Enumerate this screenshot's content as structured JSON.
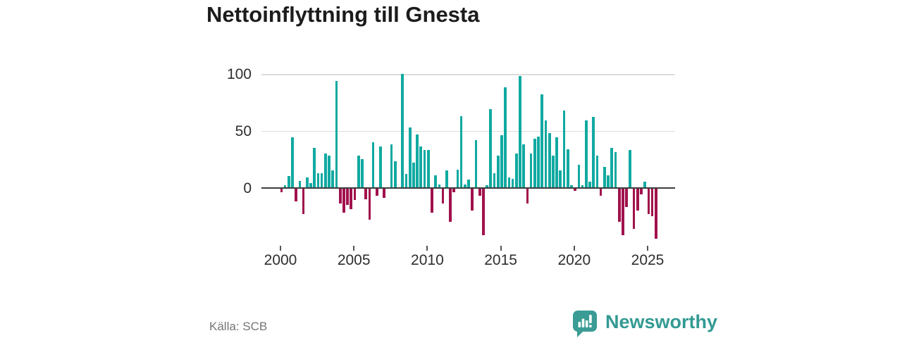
{
  "title": "Nettoinflyttning till Gnesta",
  "source": "Källa: SCB",
  "branding": {
    "name": "Newsworthy",
    "color": "#339a93"
  },
  "chart_data": {
    "type": "bar",
    "title": "Nettoinflyttning till Gnesta",
    "frequency": "quarterly",
    "start_period": "2000 Q1",
    "end_period": "2025 Q3",
    "values": [
      -4,
      2,
      10,
      44,
      -12,
      6,
      -23,
      9,
      4,
      35,
      13,
      13,
      30,
      28,
      15,
      94,
      -14,
      -22,
      -15,
      -19,
      -11,
      28,
      25,
      -10,
      -28,
      40,
      -7,
      36,
      -9,
      0,
      38,
      23,
      0,
      100,
      12,
      53,
      22,
      47,
      36,
      33,
      33,
      -22,
      11,
      3,
      -14,
      15,
      -30,
      -4,
      16,
      63,
      3,
      7,
      -20,
      42,
      -7,
      -42,
      2,
      69,
      13,
      28,
      46,
      88,
      9,
      8,
      30,
      98,
      38,
      -14,
      30,
      43,
      45,
      82,
      59,
      48,
      28,
      44,
      15,
      68,
      34,
      2,
      -3,
      20,
      2,
      59,
      5,
      62,
      28,
      -7,
      18,
      11,
      35,
      31,
      -30,
      -42,
      -17,
      33,
      -36,
      -20,
      -6,
      5,
      -23,
      -25,
      -45
    ],
    "x_tick_labels": [
      "2000",
      "2005",
      "2010",
      "2015",
      "2020",
      "2025"
    ],
    "y_ticks": [
      100,
      50,
      0
    ],
    "ylim": [
      -50,
      100
    ],
    "grid": "horizontal",
    "legend": "none",
    "positive_color": "#10a9a1",
    "negative_color": "#a1114c"
  }
}
